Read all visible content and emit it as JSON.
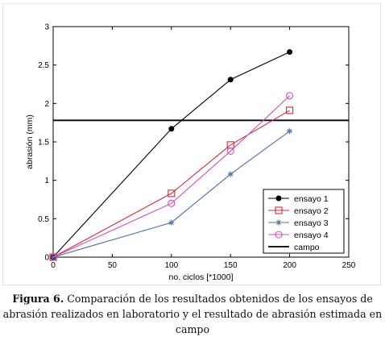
{
  "chart_data": {
    "type": "line",
    "xlabel": "no. ciclos [*1000]",
    "ylabel": "abrasión (mm)",
    "xlim": [
      0,
      250
    ],
    "ylim": [
      0,
      3
    ],
    "xticks": [
      0,
      50,
      100,
      150,
      200,
      250
    ],
    "yticks": [
      0,
      0.5,
      1,
      1.5,
      2,
      2.5,
      3
    ],
    "xtick_labels": [
      "0",
      "50",
      "100",
      "150",
      "200",
      "250"
    ],
    "ytick_labels": [
      "0",
      "0.5",
      "1",
      "1.5",
      "2",
      "2.5",
      "3"
    ],
    "grid": false,
    "legend_position": "bottom-right",
    "x": [
      0,
      100,
      150,
      200
    ],
    "series": [
      {
        "name": "ensayo 1",
        "color": "#000000",
        "marker": "filled-circle",
        "values": [
          0,
          1.67,
          2.31,
          2.67
        ]
      },
      {
        "name": "ensayo 2",
        "color": "#d9263a",
        "marker": "square",
        "values": [
          0,
          0.83,
          1.46,
          1.91
        ]
      },
      {
        "name": "ensayo 3",
        "color": "#4f6fa8",
        "marker": "star",
        "values": [
          0,
          0.45,
          1.08,
          1.64
        ]
      },
      {
        "name": "ensayo 4",
        "color": "#d04fc0",
        "marker": "circle",
        "values": [
          0,
          0.7,
          1.38,
          2.1
        ]
      }
    ],
    "reference_line": {
      "name": "campo",
      "color": "#000000",
      "y": 1.78
    }
  },
  "caption": {
    "label": "Figura 6.",
    "text": " Comparación de los resultados obtenidos de los ensayos de abrasión realizados en laboratorio y el resultado de abrasión estimada en campo"
  }
}
